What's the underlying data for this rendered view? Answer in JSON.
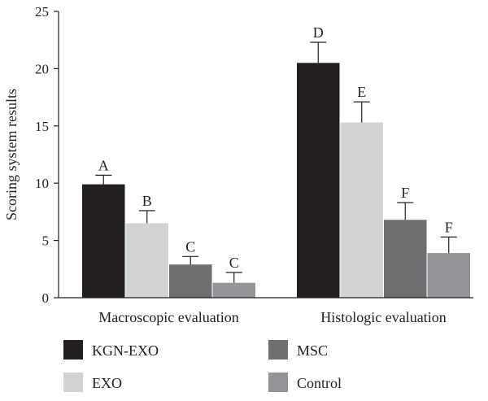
{
  "chart_data": {
    "type": "bar",
    "ylabel": "Scoring system results",
    "xlabel": "",
    "ylim": [
      0,
      25
    ],
    "yticks": [
      0,
      5,
      10,
      15,
      20,
      25
    ],
    "categories": [
      "Macroscopic evaluation",
      "Histologic evaluation"
    ],
    "series": [
      {
        "name": "KGN-EXO",
        "color": "#231f20",
        "values": [
          9.9,
          20.5
        ],
        "errors": [
          0.8,
          1.8
        ],
        "labels": [
          "A",
          "D"
        ]
      },
      {
        "name": "EXO",
        "color": "#d2d3d5",
        "values": [
          6.5,
          15.3
        ],
        "errors": [
          1.1,
          1.8
        ],
        "labels": [
          "B",
          "E"
        ]
      },
      {
        "name": "MSC",
        "color": "#6d6e70",
        "values": [
          2.9,
          6.8
        ],
        "errors": [
          0.7,
          1.5
        ],
        "labels": [
          "C",
          "F"
        ]
      },
      {
        "name": "Control",
        "color": "#939598",
        "values": [
          1.3,
          3.9
        ],
        "errors": [
          0.9,
          1.4
        ],
        "labels": [
          "C",
          "F"
        ]
      }
    ],
    "legend": {
      "placement": "bottom",
      "columns": 2
    },
    "grid": false
  }
}
